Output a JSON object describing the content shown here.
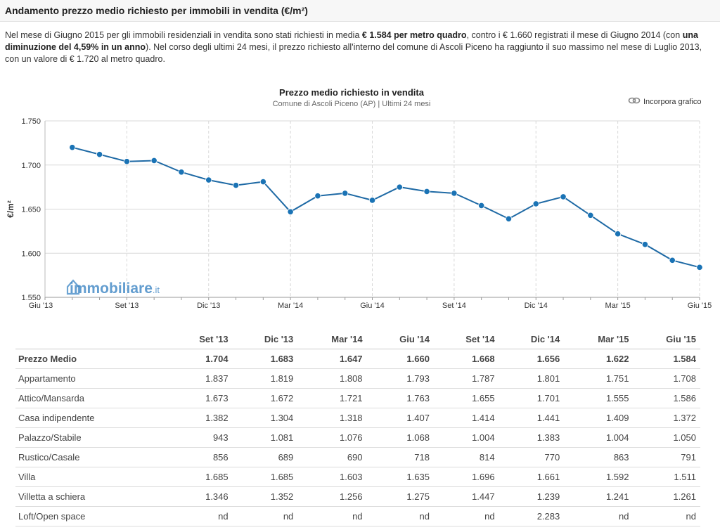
{
  "header": {
    "title": "Andamento prezzo medio richiesto per immobili in vendita (€/m²)"
  },
  "intro": {
    "p1": "Nel mese di Giugno 2015 per gli immobili residenziali in vendita sono stati richiesti in media ",
    "b1": "€ 1.584 per metro quadro",
    "p2": ", contro i € 1.660 registrati il mese di Giugno 2014 (con ",
    "b2": "una diminuzione del 4,59% in un anno",
    "p3": "). Nel corso degli ultimi 24 mesi, il prezzo richiesto all'interno del comune di Ascoli Piceno ha raggiunto il suo massimo nel mese di Luglio 2013, con un valore di € 1.720 al metro quadro."
  },
  "embed": {
    "label": "Incorpora grafico",
    "icon": "link-icon"
  },
  "watermark": {
    "text_a": "immobiliare",
    "text_b": ".it",
    "color": "#2f7dc0"
  },
  "colors": {
    "line": "#1f6aa5",
    "point": "#1a73b5",
    "grid": "#d8d8d8"
  },
  "chart_data": {
    "type": "line",
    "title": "Prezzo medio richiesto in vendita",
    "subtitle": "Comune di Ascoli Piceno (AP) | Ultimi 24 mesi",
    "ylabel": "€/m²",
    "ylim": [
      1550,
      1750
    ],
    "yticks": [
      "1.550",
      "1.600",
      "1.650",
      "1.700",
      "1.750"
    ],
    "xticks": [
      "Giu '13",
      "Set '13",
      "Dic '13",
      "Mar '14",
      "Giu '14",
      "Set '14",
      "Dic '14",
      "Mar '15",
      "Giu '15"
    ],
    "x": [
      "Lug '13",
      "Ago '13",
      "Set '13",
      "Ott '13",
      "Nov '13",
      "Dic '13",
      "Gen '14",
      "Feb '14",
      "Mar '14",
      "Apr '14",
      "Mag '14",
      "Giu '14",
      "Lug '14",
      "Ago '14",
      "Set '14",
      "Ott '14",
      "Nov '14",
      "Dic '14",
      "Gen '15",
      "Feb '15",
      "Mar '15",
      "Apr '15",
      "Mag '15",
      "Giu '15"
    ],
    "series": [
      {
        "values": [
          1720,
          1712,
          1704,
          1705,
          1692,
          1683,
          1677,
          1681,
          1647,
          1665,
          1668,
          1660,
          1675,
          1670,
          1668,
          1654,
          1639,
          1656,
          1664,
          1643,
          1622,
          1610,
          1592,
          1584
        ]
      }
    ],
    "grid": true,
    "legend": "none"
  },
  "table": {
    "headers": [
      "",
      "Set '13",
      "Dic '13",
      "Mar '14",
      "Giu '14",
      "Set '14",
      "Dic '14",
      "Mar '15",
      "Giu '15"
    ],
    "rows": [
      {
        "label": "Prezzo Medio",
        "bold": true,
        "values": [
          "1.704",
          "1.683",
          "1.647",
          "1.660",
          "1.668",
          "1.656",
          "1.622",
          "1.584"
        ]
      },
      {
        "label": "Appartamento",
        "bold": false,
        "values": [
          "1.837",
          "1.819",
          "1.808",
          "1.793",
          "1.787",
          "1.801",
          "1.751",
          "1.708"
        ]
      },
      {
        "label": "Attico/Mansarda",
        "bold": false,
        "values": [
          "1.673",
          "1.672",
          "1.721",
          "1.763",
          "1.655",
          "1.701",
          "1.555",
          "1.586"
        ]
      },
      {
        "label": "Casa indipendente",
        "bold": false,
        "values": [
          "1.382",
          "1.304",
          "1.318",
          "1.407",
          "1.414",
          "1.441",
          "1.409",
          "1.372"
        ]
      },
      {
        "label": "Palazzo/Stabile",
        "bold": false,
        "values": [
          "943",
          "1.081",
          "1.076",
          "1.068",
          "1.004",
          "1.383",
          "1.004",
          "1.050"
        ]
      },
      {
        "label": "Rustico/Casale",
        "bold": false,
        "values": [
          "856",
          "689",
          "690",
          "718",
          "814",
          "770",
          "863",
          "791"
        ]
      },
      {
        "label": "Villa",
        "bold": false,
        "values": [
          "1.685",
          "1.685",
          "1.603",
          "1.635",
          "1.696",
          "1.661",
          "1.592",
          "1.511"
        ]
      },
      {
        "label": "Villetta a schiera",
        "bold": false,
        "values": [
          "1.346",
          "1.352",
          "1.256",
          "1.275",
          "1.447",
          "1.239",
          "1.241",
          "1.261"
        ]
      },
      {
        "label": "Loft/Open space",
        "bold": false,
        "values": [
          "nd",
          "nd",
          "nd",
          "nd",
          "nd",
          "2.283",
          "nd",
          "nd"
        ]
      }
    ]
  }
}
